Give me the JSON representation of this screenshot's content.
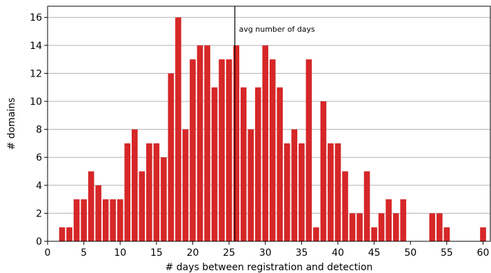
{
  "chart_data": {
    "type": "bar",
    "xlabel": "# days between registration and detection",
    "ylabel": "# domains",
    "xlim": [
      0,
      61
    ],
    "ylim": [
      0,
      16.8
    ],
    "xticks": [
      0,
      5,
      10,
      15,
      20,
      25,
      30,
      35,
      40,
      45,
      50,
      55,
      60
    ],
    "yticks": [
      0,
      2,
      4,
      6,
      8,
      10,
      12,
      14,
      16
    ],
    "grid": "horizontal",
    "bar_color": "#d62728",
    "x": [
      2,
      3,
      4,
      5,
      6,
      7,
      8,
      9,
      10,
      11,
      12,
      13,
      14,
      15,
      16,
      17,
      18,
      19,
      20,
      21,
      22,
      23,
      24,
      25,
      26,
      27,
      28,
      29,
      30,
      31,
      32,
      33,
      34,
      35,
      36,
      37,
      38,
      39,
      40,
      41,
      42,
      43,
      44,
      45,
      46,
      47,
      48,
      49,
      50,
      51,
      52,
      53,
      54,
      55,
      56,
      57,
      58,
      59,
      60
    ],
    "values": [
      1,
      1,
      3,
      3,
      5,
      4,
      3,
      3,
      3,
      7,
      8,
      5,
      7,
      7,
      6,
      12,
      16,
      8,
      13,
      14,
      14,
      11,
      13,
      13,
      14,
      11,
      8,
      11,
      14,
      13,
      11,
      7,
      8,
      7,
      13,
      1,
      10,
      7,
      7,
      5,
      2,
      2,
      5,
      1,
      2,
      3,
      2,
      3,
      0,
      0,
      0,
      2,
      2,
      1,
      0,
      0,
      0,
      0,
      1
    ],
    "mean_line": {
      "x": 25.8,
      "label": "avg number of days"
    }
  }
}
